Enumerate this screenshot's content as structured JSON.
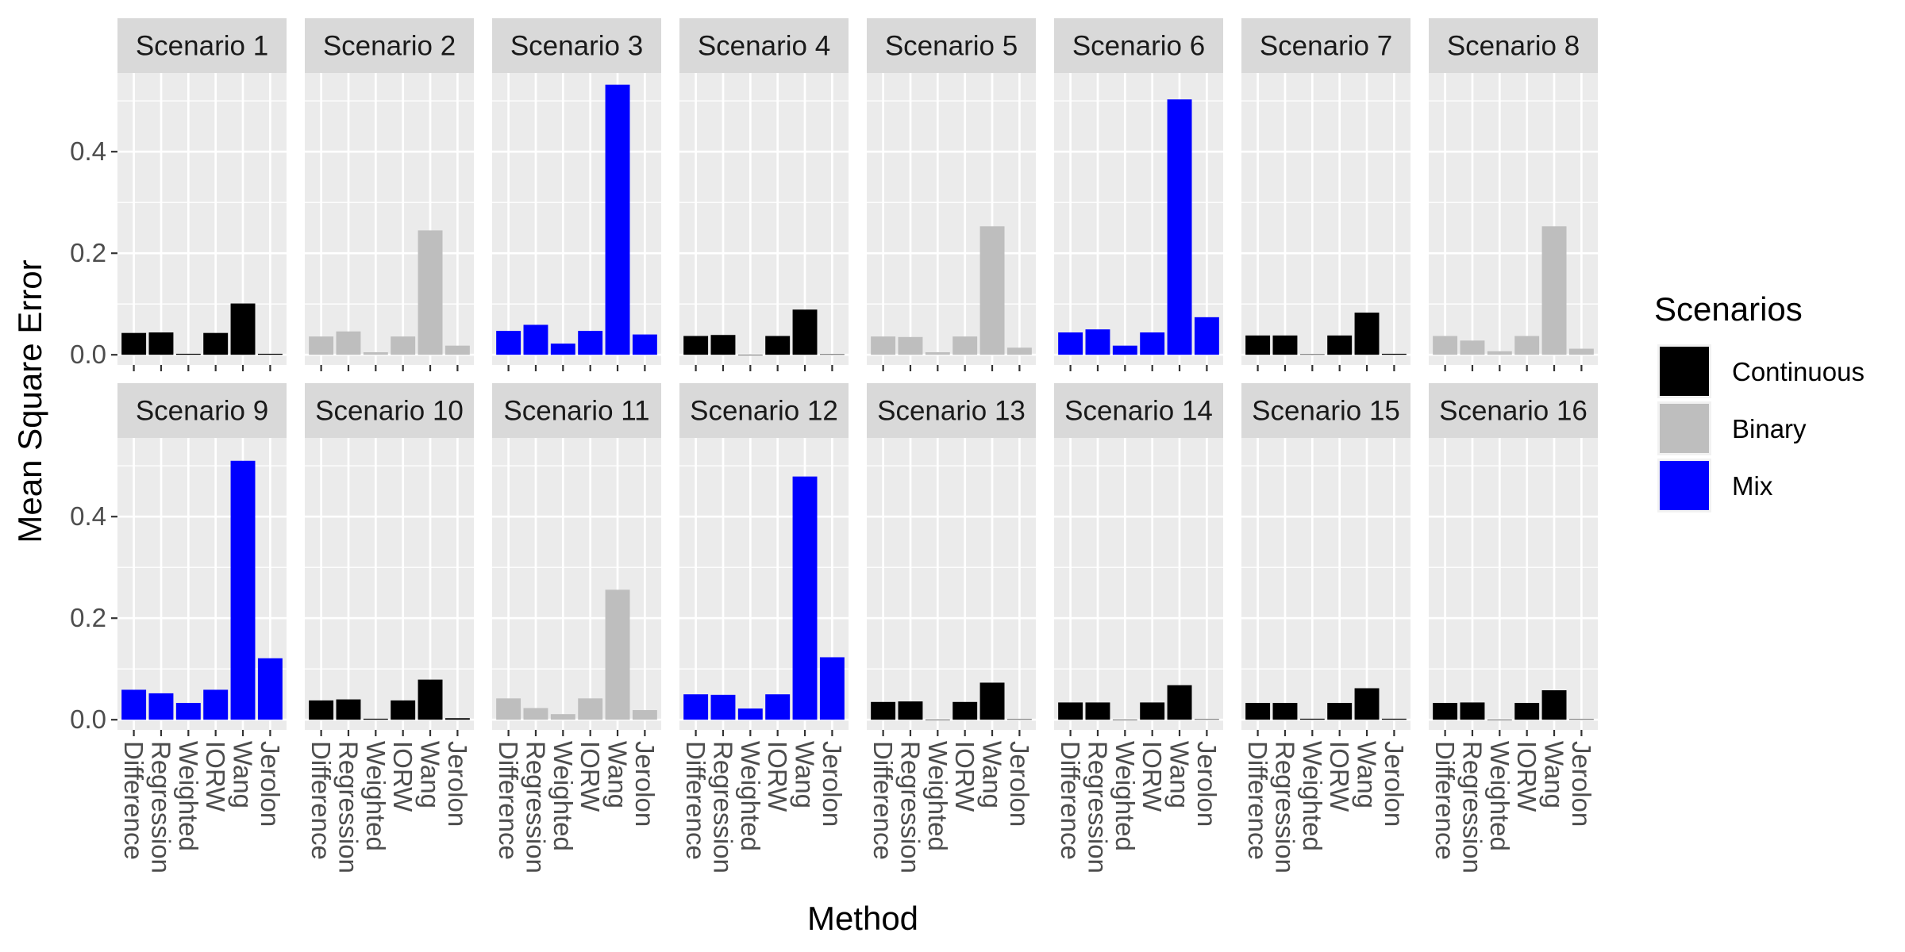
{
  "chart_data": {
    "type": "bar",
    "ylabel": "Mean Square Error",
    "xlabel": "Method",
    "ylim": [
      -0.02,
      0.555
    ],
    "yticks": [
      0.0,
      0.2,
      0.4
    ],
    "ytick_labels": [
      "0.0",
      "0.2",
      "0.4"
    ],
    "categories": [
      "Difference",
      "Regression",
      "Weighted",
      "IORW",
      "Wang",
      "Jerolon"
    ],
    "legend": {
      "title": "Scenarios",
      "placement": "right",
      "items": [
        {
          "label": "Continuous",
          "color": "#000000"
        },
        {
          "label": "Binary",
          "color": "#bebebe"
        },
        {
          "label": "Mix",
          "color": "#0000ff"
        }
      ]
    },
    "panels": [
      {
        "title": "Scenario 1",
        "group": "Continuous",
        "values": [
          0.043,
          0.044,
          0.002,
          0.043,
          0.101,
          0.002
        ]
      },
      {
        "title": "Scenario 2",
        "group": "Binary",
        "values": [
          0.036,
          0.046,
          0.005,
          0.036,
          0.245,
          0.018
        ]
      },
      {
        "title": "Scenario 3",
        "group": "Mix",
        "values": [
          0.047,
          0.059,
          0.022,
          0.047,
          0.532,
          0.04
        ]
      },
      {
        "title": "Scenario 4",
        "group": "Continuous",
        "values": [
          0.037,
          0.039,
          0.0,
          0.037,
          0.089,
          0.001
        ]
      },
      {
        "title": "Scenario 5",
        "group": "Binary",
        "values": [
          0.036,
          0.035,
          0.005,
          0.036,
          0.253,
          0.014
        ]
      },
      {
        "title": "Scenario 6",
        "group": "Mix",
        "values": [
          0.044,
          0.05,
          0.018,
          0.044,
          0.503,
          0.074
        ]
      },
      {
        "title": "Scenario 7",
        "group": "Continuous",
        "values": [
          0.038,
          0.038,
          0.001,
          0.038,
          0.083,
          0.002
        ]
      },
      {
        "title": "Scenario 8",
        "group": "Binary",
        "values": [
          0.037,
          0.028,
          0.007,
          0.037,
          0.253,
          0.012
        ]
      },
      {
        "title": "Scenario 9",
        "group": "Mix",
        "values": [
          0.059,
          0.052,
          0.033,
          0.059,
          0.51,
          0.121
        ]
      },
      {
        "title": "Scenario 10",
        "group": "Continuous",
        "values": [
          0.038,
          0.04,
          0.002,
          0.038,
          0.079,
          0.003
        ]
      },
      {
        "title": "Scenario 11",
        "group": "Binary",
        "values": [
          0.042,
          0.023,
          0.011,
          0.042,
          0.256,
          0.019
        ]
      },
      {
        "title": "Scenario 12",
        "group": "Mix",
        "values": [
          0.05,
          0.049,
          0.022,
          0.05,
          0.479,
          0.123
        ]
      },
      {
        "title": "Scenario 13",
        "group": "Continuous",
        "values": [
          0.035,
          0.036,
          0.0,
          0.035,
          0.073,
          0.001
        ]
      },
      {
        "title": "Scenario 14",
        "group": "Continuous",
        "values": [
          0.034,
          0.034,
          0.0,
          0.034,
          0.068,
          0.001
        ]
      },
      {
        "title": "Scenario 15",
        "group": "Continuous",
        "values": [
          0.033,
          0.033,
          0.002,
          0.033,
          0.062,
          0.002
        ]
      },
      {
        "title": "Scenario 16",
        "group": "Continuous",
        "values": [
          0.033,
          0.034,
          0.0,
          0.033,
          0.058,
          0.001
        ]
      }
    ]
  }
}
